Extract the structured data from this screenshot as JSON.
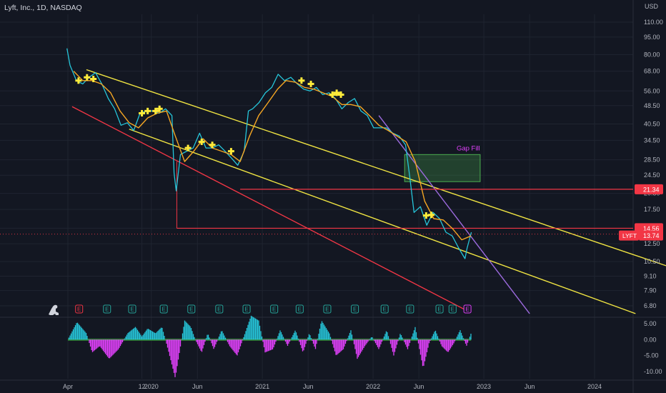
{
  "header": {
    "title": "Lyft, Inc., 1D, NASDAQ"
  },
  "chart_data": [
    {
      "type": "line",
      "title": "Lyft, Inc., 1D, NASDAQ",
      "price_axis_label": "USD",
      "y_scale": "log",
      "ylim": [
        5.7,
        122
      ],
      "y_ticks": [
        110.0,
        95.0,
        80.0,
        68.0,
        56.0,
        48.5,
        40.5,
        34.5,
        28.5,
        24.5,
        20.5,
        17.5,
        14.56,
        12.5,
        10.5,
        9.1,
        7.9,
        6.8
      ],
      "y_tick_labels": [
        "110.00",
        "95.00",
        "80.00",
        "68.00",
        "56.00",
        "48.50",
        "40.50",
        "34.50",
        "28.50",
        "24.50",
        "20.50",
        "17.50",
        "14.56",
        "12.50",
        "10.50",
        "9.10",
        "7.90",
        "6.80"
      ],
      "x_tick_labels": [
        "Apr",
        "12",
        "2020",
        "Jun",
        "2021",
        "Jun",
        "2022",
        "Jun",
        "2023",
        "Jun",
        "2024"
      ],
      "x_tick_dates": [
        "2019-04-01",
        "2019-12-01",
        "2020-01-01",
        "2020-06-01",
        "2021-01-01",
        "2021-06-01",
        "2022-01-01",
        "2022-06-01",
        "2023-01-01",
        "2023-06-01",
        "2024-01-01"
      ],
      "price_labels": [
        {
          "text": "21.34",
          "value": 21.34,
          "color": "#f23645"
        },
        {
          "text": "14.56",
          "value": 14.56,
          "color": "#f23645"
        },
        {
          "text": "LYFT",
          "value": 13.74,
          "color": "#f23645"
        },
        {
          "text": "13.74",
          "value": 13.74,
          "color": "#f23645"
        }
      ],
      "last_price": 13.74,
      "series": [
        {
          "color": "#26c6da",
          "x": [
            "2019-03-29",
            "2019-04-08",
            "2019-04-29",
            "2019-05-20",
            "2019-06-10",
            "2019-07-01",
            "2019-07-22",
            "2019-08-12",
            "2019-09-02",
            "2019-09-23",
            "2019-10-14",
            "2019-11-04",
            "2019-11-25",
            "2019-12-16",
            "2020-01-06",
            "2020-01-27",
            "2020-02-17",
            "2020-03-09",
            "2020-03-16",
            "2020-03-23",
            "2020-04-06",
            "2020-04-27",
            "2020-05-18",
            "2020-06-08",
            "2020-06-29",
            "2020-07-20",
            "2020-08-10",
            "2020-08-31",
            "2020-09-21",
            "2020-10-12",
            "2020-11-02",
            "2020-11-16",
            "2020-11-30",
            "2020-12-21",
            "2021-01-11",
            "2021-02-01",
            "2021-02-22",
            "2021-03-15",
            "2021-04-05",
            "2021-04-26",
            "2021-05-17",
            "2021-06-07",
            "2021-06-28",
            "2021-07-19",
            "2021-08-09",
            "2021-08-30",
            "2021-09-20",
            "2021-10-11",
            "2021-11-01",
            "2021-11-22",
            "2021-12-13",
            "2022-01-03",
            "2022-01-24",
            "2022-02-14",
            "2022-03-07",
            "2022-03-28",
            "2022-04-18",
            "2022-05-02",
            "2022-05-16",
            "2022-06-06",
            "2022-06-27",
            "2022-07-18",
            "2022-08-08",
            "2022-08-29",
            "2022-09-19",
            "2022-10-10",
            "2022-10-31",
            "2022-11-07",
            "2022-11-21"
          ],
          "values": [
            85,
            72,
            62,
            60,
            64,
            67,
            60,
            52,
            47,
            40,
            41,
            38,
            45,
            46,
            46,
            45,
            47,
            44,
            25,
            21,
            30,
            31,
            32,
            37,
            32,
            32,
            33,
            31,
            29,
            27,
            31,
            46,
            47,
            50,
            55,
            58,
            66,
            62,
            64,
            60,
            57,
            56,
            58,
            54,
            55,
            52,
            47,
            50,
            52,
            46,
            44,
            39,
            39,
            39,
            37,
            36,
            33,
            24,
            17,
            18,
            15,
            17,
            16,
            14,
            13.5,
            12,
            10.8,
            12,
            14
          ]
        },
        {
          "color": "#f5a623",
          "x": [
            "2019-04-20",
            "2019-05-20",
            "2019-06-20",
            "2019-07-20",
            "2019-08-20",
            "2019-09-20",
            "2019-10-20",
            "2019-11-20",
            "2019-12-20",
            "2020-01-20",
            "2020-02-20",
            "2020-03-20",
            "2020-04-20",
            "2020-05-20",
            "2020-06-20",
            "2020-07-20",
            "2020-08-20",
            "2020-09-20",
            "2020-10-20",
            "2020-11-20",
            "2020-12-20",
            "2021-01-20",
            "2021-02-20",
            "2021-03-20",
            "2021-04-20",
            "2021-05-20",
            "2021-06-20",
            "2021-07-20",
            "2021-08-20",
            "2021-09-20",
            "2021-10-20",
            "2021-11-20",
            "2021-12-20",
            "2022-01-20",
            "2022-02-20",
            "2022-03-20",
            "2022-04-20",
            "2022-05-20",
            "2022-06-20",
            "2022-07-20",
            "2022-08-20",
            "2022-09-20",
            "2022-10-20",
            "2022-11-20"
          ],
          "values": [
            68,
            62,
            62,
            60,
            55,
            46,
            41,
            39,
            43,
            45,
            46,
            36,
            28,
            31,
            35,
            32,
            31,
            30,
            28,
            36,
            44,
            50,
            57,
            62,
            61,
            58,
            57,
            55,
            53,
            49,
            49,
            48,
            44,
            40,
            38,
            36,
            34,
            28,
            19,
            16,
            15.8,
            14.5,
            13,
            13.5
          ]
        }
      ],
      "yellow_cross_markers": [
        {
          "x": "2019-05-06",
          "y": 62
        },
        {
          "x": "2019-06-03",
          "y": 64
        },
        {
          "x": "2019-06-24",
          "y": 63
        },
        {
          "x": "2019-12-01",
          "y": 45
        },
        {
          "x": "2019-12-20",
          "y": 46
        },
        {
          "x": "2020-01-15",
          "y": 46
        },
        {
          "x": "2020-01-28",
          "y": 47
        },
        {
          "x": "2020-05-01",
          "y": 32
        },
        {
          "x": "2020-06-15",
          "y": 34
        },
        {
          "x": "2020-07-20",
          "y": 33
        },
        {
          "x": "2020-09-20",
          "y": 31
        },
        {
          "x": "2021-05-10",
          "y": 62
        },
        {
          "x": "2021-06-10",
          "y": 60
        },
        {
          "x": "2021-08-20",
          "y": 54
        },
        {
          "x": "2021-09-03",
          "y": 55
        },
        {
          "x": "2021-09-17",
          "y": 54
        },
        {
          "x": "2022-06-25",
          "y": 16.5
        },
        {
          "x": "2022-07-12",
          "y": 16.6
        }
      ],
      "annotations": [
        {
          "text": "Gap Fill",
          "color": "#e040fb"
        }
      ],
      "earnings_markers": [
        "E",
        "E",
        "E",
        "E",
        "E",
        "E",
        "E",
        "E",
        "E",
        "E",
        "E",
        "E",
        "E",
        "E",
        "E",
        "E"
      ],
      "drawings": [
        {
          "name": "yellow-channel-upper",
          "color": "#f0e442",
          "points": [
            {
              "x": "2019-06-01",
              "y": 69
            },
            {
              "x": "2024-10-01",
              "y": 9.7
            }
          ]
        },
        {
          "name": "yellow-channel-lower",
          "color": "#f0e442",
          "points": [
            {
              "x": "2019-10-20",
              "y": 38.5
            },
            {
              "x": "2024-05-15",
              "y": 6.3
            }
          ]
        },
        {
          "name": "red-trendline",
          "color": "#f23645",
          "points": [
            {
              "x": "2019-04-15",
              "y": 48
            },
            {
              "x": "2022-11-15",
              "y": 6.4
            }
          ]
        },
        {
          "name": "purple-trendline",
          "color": "#9c6ade",
          "points": [
            {
              "x": "2022-01-20",
              "y": 44
            },
            {
              "x": "2023-06-01",
              "y": 6.3
            }
          ]
        },
        {
          "name": "red-hline-21.34",
          "color": "#f23645",
          "value": 21.34
        },
        {
          "name": "red-hline-14.56",
          "color": "#f23645",
          "value": 14.56
        }
      ],
      "gap_box": {
        "y_top": 30.0,
        "y_bottom": 23.0,
        "x_start": "2022-04-15",
        "x_end": "2022-12-20",
        "color": "#4caf50"
      }
    },
    {
      "type": "area",
      "name": "oscillator",
      "ylim": [
        -11,
        6.5
      ],
      "y_ticks": [
        5.0,
        0.0,
        -5.0,
        -10.0
      ],
      "y_tick_labels": [
        "5.00",
        "0.00",
        "-5.00",
        "-10.00"
      ],
      "positive_color": "#26c6da",
      "negative_color": "#e040fb",
      "x": [
        "2019-04-01",
        "2019-05-01",
        "2019-06-01",
        "2019-06-20",
        "2019-07-15",
        "2019-08-15",
        "2019-09-15",
        "2019-10-15",
        "2019-11-10",
        "2019-12-01",
        "2019-12-20",
        "2020-01-15",
        "2020-02-05",
        "2020-02-25",
        "2020-03-20",
        "2020-04-20",
        "2020-05-10",
        "2020-05-25",
        "2020-06-15",
        "2020-07-05",
        "2020-07-25",
        "2020-08-20",
        "2020-09-15",
        "2020-10-10",
        "2020-11-05",
        "2020-11-25",
        "2020-12-20",
        "2021-01-10",
        "2021-02-05",
        "2021-03-01",
        "2021-03-25",
        "2021-04-20",
        "2021-05-15",
        "2021-06-05",
        "2021-06-25",
        "2021-07-15",
        "2021-08-10",
        "2021-09-01",
        "2021-09-25",
        "2021-10-20",
        "2021-11-10",
        "2021-12-05",
        "2021-12-28",
        "2022-01-20",
        "2022-02-15",
        "2022-03-10",
        "2022-04-01",
        "2022-04-25",
        "2022-05-20",
        "2022-06-15",
        "2022-07-05",
        "2022-07-25",
        "2022-08-15",
        "2022-09-05",
        "2022-09-25",
        "2022-10-15",
        "2022-11-05",
        "2022-11-20"
      ],
      "values": [
        0,
        5.5,
        2,
        -4,
        -2,
        -6,
        -3,
        2,
        4,
        1,
        3.5,
        2,
        4,
        -3,
        -12,
        6,
        4,
        0,
        -4,
        2,
        -3,
        3,
        -2,
        -5,
        2,
        7.5,
        6,
        -4,
        -3,
        3,
        -2,
        3,
        -4,
        2,
        -3,
        6,
        2,
        -5,
        -3,
        3,
        -6,
        -2,
        1,
        -3,
        3,
        -5,
        2,
        -3,
        4,
        -9,
        -1,
        3,
        -2,
        -4,
        -1,
        3,
        -2,
        2
      ]
    }
  ]
}
